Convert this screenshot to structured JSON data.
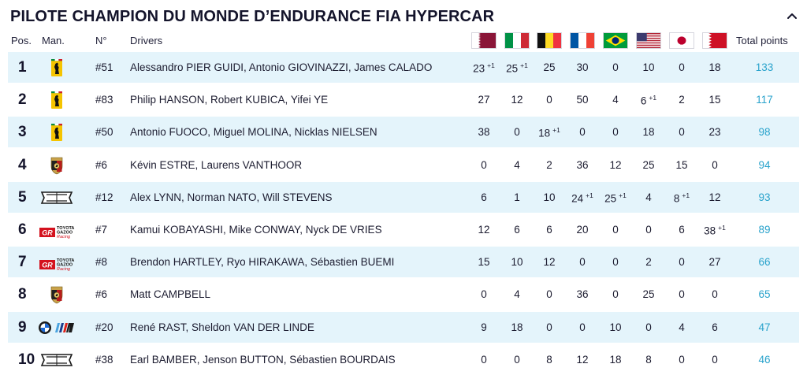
{
  "title": "PILOTE CHAMPION DU MONDE D’ENDURANCE FIA HYPERCAR",
  "columns": {
    "pos": "Pos.",
    "man": "Man.",
    "number": "N°",
    "drivers": "Drivers",
    "total": "Total points",
    "flags": [
      "qatar-flag",
      "italy-flag",
      "belgium-flag",
      "france-flag",
      "brazil-flag",
      "usa-flag",
      "japan-flag",
      "bahrain-flag"
    ]
  },
  "rows": [
    {
      "pos": "1",
      "logo": "ferrari-logo",
      "number": "#51",
      "drivers": "Alessandro PIER GUIDI, Antonio GIOVINAZZI, James CALADO",
      "r": [
        "23",
        "25",
        "25",
        "30",
        "0",
        "10",
        "0",
        "18"
      ],
      "plus": [
        "+1",
        "+1",
        "",
        "",
        "",
        "",
        "",
        ""
      ],
      "total": "133"
    },
    {
      "pos": "2",
      "logo": "ferrari-logo",
      "number": "#83",
      "drivers": "Philip HANSON, Robert KUBICA, Yifei YE",
      "r": [
        "27",
        "12",
        "0",
        "50",
        "4",
        "6",
        "2",
        "15"
      ],
      "plus": [
        "",
        "",
        "",
        "",
        "",
        "+1",
        "",
        ""
      ],
      "total": "117"
    },
    {
      "pos": "3",
      "logo": "ferrari-logo",
      "number": "#50",
      "drivers": "Antonio FUOCO, Miguel MOLINA, Nicklas NIELSEN",
      "r": [
        "38",
        "0",
        "18",
        "0",
        "0",
        "18",
        "0",
        "23"
      ],
      "plus": [
        "",
        "",
        "+1",
        "",
        "",
        "",
        "",
        ""
      ],
      "total": "98"
    },
    {
      "pos": "4",
      "logo": "porsche-logo",
      "number": "#6",
      "drivers": "Kévin ESTRE, Laurens VANTHOOR",
      "r": [
        "0",
        "4",
        "2",
        "36",
        "12",
        "25",
        "15",
        "0"
      ],
      "plus": [
        "",
        "",
        "",
        "",
        "",
        "",
        "",
        ""
      ],
      "total": "94"
    },
    {
      "pos": "5",
      "logo": "cadillac-logo",
      "number": "#12",
      "drivers": "Alex LYNN, Norman NATO, Will STEVENS",
      "r": [
        "6",
        "1",
        "10",
        "24",
        "25",
        "4",
        "8",
        "12"
      ],
      "plus": [
        "",
        "",
        "",
        "+1",
        "+1",
        "",
        "+1",
        ""
      ],
      "total": "93"
    },
    {
      "pos": "6",
      "logo": "toyota-gr-logo",
      "number": "#7",
      "drivers": "Kamui KOBAYASHI, Mike CONWAY, Nyck DE VRIES",
      "r": [
        "12",
        "6",
        "6",
        "20",
        "0",
        "0",
        "6",
        "38"
      ],
      "plus": [
        "",
        "",
        "",
        "",
        "",
        "",
        "",
        "+1"
      ],
      "total": "89"
    },
    {
      "pos": "7",
      "logo": "toyota-gr-logo",
      "number": "#8",
      "drivers": "Brendon HARTLEY, Ryo HIRAKAWA, Sébastien BUEMI",
      "r": [
        "15",
        "10",
        "12",
        "0",
        "0",
        "2",
        "0",
        "27"
      ],
      "plus": [
        "",
        "",
        "",
        "",
        "",
        "",
        "",
        ""
      ],
      "total": "66"
    },
    {
      "pos": "8",
      "logo": "porsche-logo",
      "number": "#6",
      "drivers": "Matt CAMPBELL",
      "r": [
        "0",
        "4",
        "0",
        "36",
        "0",
        "25",
        "0",
        "0"
      ],
      "plus": [
        "",
        "",
        "",
        "",
        "",
        "",
        "",
        ""
      ],
      "total": "65"
    },
    {
      "pos": "9",
      "logo": "bmw-m-logo",
      "number": "#20",
      "drivers": "René RAST, Sheldon VAN DER LINDE",
      "r": [
        "9",
        "18",
        "0",
        "0",
        "10",
        "0",
        "4",
        "6"
      ],
      "plus": [
        "",
        "",
        "",
        "",
        "",
        "",
        "",
        ""
      ],
      "total": "47"
    },
    {
      "pos": "10",
      "logo": "cadillac-logo",
      "number": "#38",
      "drivers": "Earl BAMBER, Jenson BUTTON, Sébastien BOURDAIS",
      "r": [
        "0",
        "0",
        "8",
        "12",
        "18",
        "8",
        "0",
        "0"
      ],
      "plus": [
        "",
        "",
        "",
        "",
        "",
        "",
        "",
        ""
      ],
      "total": "46"
    }
  ],
  "logo_text": {
    "toyota_line1": "TOYOTA",
    "toyota_line2": "GAZOO",
    "toyota_line3": "Racing",
    "gr": "GR"
  },
  "colors": {
    "accent": "#2aa3cc",
    "stripe": "#e4f4fb",
    "text": "#14142b"
  }
}
